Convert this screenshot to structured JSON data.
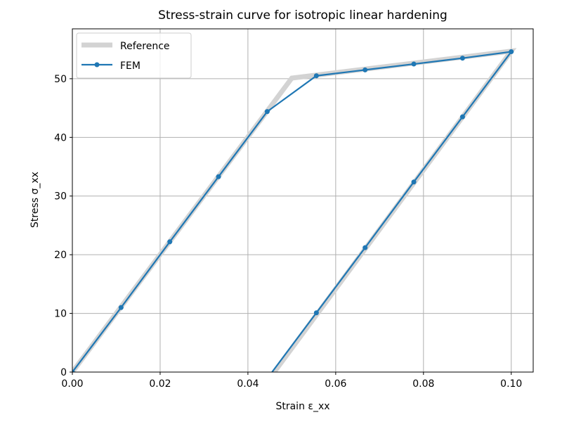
{
  "chart_data": {
    "type": "line",
    "title": "Stress-strain curve for isotropic linear hardening",
    "xlabel": "Strain ε_xx",
    "ylabel": "Stress σ_xx",
    "xlim": [
      0.0,
      0.105
    ],
    "ylim": [
      0,
      58.5
    ],
    "xticks": [
      0.0,
      0.02,
      0.04,
      0.06,
      0.08,
      0.1
    ],
    "xtick_labels": [
      "0.00",
      "0.02",
      "0.04",
      "0.06",
      "0.08",
      "0.10"
    ],
    "yticks": [
      0,
      10,
      20,
      30,
      40,
      50
    ],
    "ytick_labels": [
      "0",
      "10",
      "20",
      "30",
      "40",
      "50"
    ],
    "grid": true,
    "legend_position": "top-left",
    "series": [
      {
        "name": "Reference",
        "color": "#d3d3d3",
        "style": "thick-line",
        "x": [
          0.0,
          0.05,
          0.1,
          0.0455
        ],
        "y": [
          0.0,
          50.1,
          54.7,
          -0.5
        ]
      },
      {
        "name": "FEM",
        "color": "#1f77b4",
        "style": "line-with-markers",
        "x": [
          0.0,
          0.0111,
          0.0222,
          0.0333,
          0.0444,
          0.0556,
          0.0667,
          0.0778,
          0.0889,
          0.1,
          0.0889,
          0.0778,
          0.0667,
          0.0556,
          0.0455
        ],
        "y": [
          0.0,
          11.0,
          22.2,
          33.3,
          44.4,
          50.5,
          51.5,
          52.5,
          53.5,
          54.6,
          43.5,
          32.4,
          21.2,
          10.1,
          0.0
        ],
        "markers": [
          true,
          true,
          true,
          true,
          true,
          true,
          true,
          true,
          true,
          true,
          true,
          true,
          true,
          true,
          false
        ]
      }
    ]
  }
}
